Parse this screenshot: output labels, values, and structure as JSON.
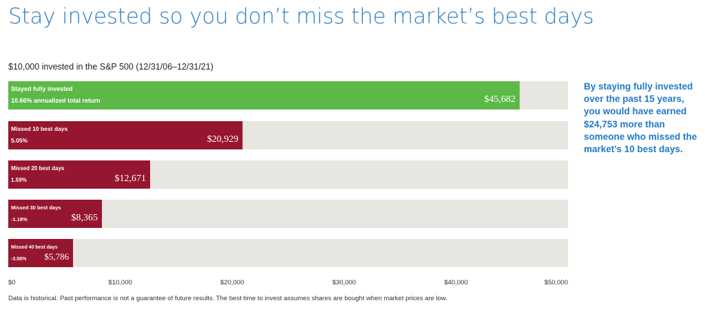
{
  "title": "Stay invested so you don’t miss the market’s best days",
  "chart_data": {
    "type": "bar",
    "orientation": "horizontal",
    "title": "$10,000 invested in the S&P 500 (12/31/06–12/31/21)",
    "categories": [
      "Stayed fully invested",
      "Missed 10 best days",
      "Missed 20 best days",
      "Missed 30 best days",
      "Missed 40 best days"
    ],
    "returns": [
      "10.66% annualized total return",
      "5.05%",
      "1.59%",
      "-1.18%",
      "-3.58%"
    ],
    "values": [
      45682,
      20929,
      12671,
      8365,
      5786
    ],
    "value_labels": [
      "$45,682",
      "$20,929",
      "$12,671",
      "$8,365",
      "$5,786"
    ],
    "xlim": [
      0,
      50000
    ],
    "ticks": [
      0,
      10000,
      20000,
      30000,
      40000,
      50000
    ],
    "tick_labels": [
      "$0",
      "$10,000",
      "$20,000",
      "$30,000",
      "$40,000",
      "$50,000"
    ],
    "colors": {
      "invested": "#5cb947",
      "missed": "#961630",
      "track": "#e7e6e1"
    },
    "grid": false,
    "legend": "none"
  },
  "callout": "By staying fully invested over the past 15 years, you would have earned $24,753 more than someone who missed the market’s 10 best days.",
  "footnote": "Data is historical. Past performance is not a guarantee of future results. The best time to invest assumes shares are bought when market prices are low."
}
